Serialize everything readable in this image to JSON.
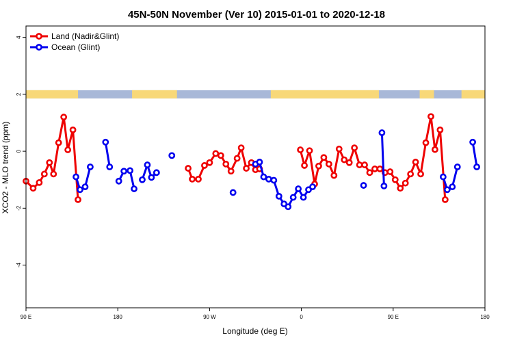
{
  "chart_data": {
    "type": "line",
    "title": "45N-50N November (Ver 10)   2015-01-01 to 2020-12-18",
    "xlabel": "Longitude (deg E)",
    "ylabel": "XCO2 - MLO trend (ppm)",
    "xlim": [
      90,
      540
    ],
    "ylim": [
      -5.5,
      4.4
    ],
    "x_ticks": [
      {
        "value": 90,
        "label": "90 E"
      },
      {
        "value": 180,
        "label": "180"
      },
      {
        "value": 270,
        "label": "90 W"
      },
      {
        "value": 360,
        "label": "0"
      },
      {
        "value": 450,
        "label": "90 E"
      },
      {
        "value": 540,
        "label": "180"
      }
    ],
    "y_ticks": [
      {
        "value": -4,
        "label": "-4"
      },
      {
        "value": -2,
        "label": "-2"
      },
      {
        "value": 0,
        "label": "0"
      },
      {
        "value": 2,
        "label": "2"
      },
      {
        "value": 4,
        "label": "4"
      }
    ],
    "surface_strip": {
      "y": 2.0,
      "land_color": "#f8d878",
      "ocean_color": "#a8b8d8",
      "land_ranges": [
        [
          90,
          141
        ],
        [
          194,
          238
        ],
        [
          330,
          436
        ],
        [
          476,
          490
        ],
        [
          517,
          540
        ]
      ]
    },
    "legend": [
      {
        "name": "Land (Nadir&Glint)",
        "color": "#ee0000"
      },
      {
        "name": "Ocean (Glint)",
        "color": "#0000ee"
      }
    ],
    "series": [
      {
        "name": "Land (Nadir&Glint)",
        "color": "#ee0000",
        "segments": [
          [
            [
              90,
              -1.05
            ],
            [
              97,
              -1.3
            ],
            [
              103,
              -1.1
            ],
            [
              108,
              -0.8
            ],
            [
              113,
              -0.4
            ],
            [
              117,
              -0.8
            ],
            [
              122,
              0.3
            ],
            [
              127,
              1.2
            ],
            [
              131,
              0.05
            ],
            [
              136,
              0.75
            ],
            [
              141,
              -1.7
            ]
          ],
          [
            [
              249,
              -0.6
            ],
            [
              253,
              -0.98
            ],
            [
              259,
              -0.98
            ],
            [
              265,
              -0.5
            ],
            [
              270,
              -0.4
            ],
            [
              276,
              -0.08
            ],
            [
              281,
              -0.15
            ],
            [
              286,
              -0.45
            ],
            [
              291,
              -0.7
            ],
            [
              297,
              -0.25
            ],
            [
              301,
              0.12
            ],
            [
              306,
              -0.6
            ],
            [
              311,
              -0.4
            ],
            [
              315,
              -0.65
            ],
            [
              319,
              -0.62
            ]
          ],
          [
            [
              359,
              0.05
            ],
            [
              363,
              -0.5
            ],
            [
              368,
              0.02
            ],
            [
              373,
              -1.15
            ],
            [
              377,
              -0.52
            ],
            [
              382,
              -0.22
            ],
            [
              387,
              -0.45
            ],
            [
              392,
              -0.85
            ],
            [
              397,
              0.08
            ],
            [
              402,
              -0.3
            ],
            [
              407,
              -0.4
            ],
            [
              412,
              0.12
            ],
            [
              417,
              -0.48
            ],
            [
              422,
              -0.48
            ],
            [
              427,
              -0.75
            ],
            [
              432,
              -0.62
            ],
            [
              437,
              -0.62
            ],
            [
              442,
              -0.75
            ],
            [
              447,
              -0.72
            ],
            [
              452,
              -1.0
            ],
            [
              457,
              -1.3
            ],
            [
              462,
              -1.12
            ],
            [
              467,
              -0.8
            ],
            [
              472,
              -0.38
            ],
            [
              477,
              -0.8
            ],
            [
              482,
              0.3
            ],
            [
              487,
              1.22
            ],
            [
              491,
              0.06
            ],
            [
              496,
              0.75
            ],
            [
              501,
              -1.7
            ]
          ]
        ]
      },
      {
        "name": "Ocean (Glint)",
        "color": "#0000ee",
        "segments": [
          [
            [
              139,
              -0.9
            ],
            [
              143,
              -1.35
            ],
            [
              148,
              -1.25
            ],
            [
              153,
              -0.55
            ]
          ],
          [
            [
              168,
              0.32
            ],
            [
              172,
              -0.55
            ]
          ],
          [
            [
              181,
              -1.05
            ],
            [
              186,
              -0.7
            ],
            [
              192,
              -0.68
            ],
            [
              196,
              -1.32
            ]
          ],
          [
            [
              204,
              -1.0
            ],
            [
              209,
              -0.48
            ],
            [
              213,
              -0.92
            ],
            [
              218,
              -0.75
            ]
          ],
          [
            [
              233,
              -0.15
            ]
          ],
          [
            [
              293,
              -1.45
            ]
          ],
          [
            [
              315,
              -0.45
            ],
            [
              319,
              -0.38
            ],
            [
              323,
              -0.9
            ],
            [
              328,
              -0.98
            ],
            [
              333,
              -1.02
            ],
            [
              338,
              -1.58
            ],
            [
              343,
              -1.85
            ],
            [
              347,
              -1.95
            ],
            [
              352,
              -1.62
            ],
            [
              357,
              -1.32
            ],
            [
              362,
              -1.62
            ],
            [
              367,
              -1.35
            ],
            [
              371,
              -1.25
            ]
          ],
          [
            [
              421,
              -1.2
            ]
          ],
          [
            [
              439,
              0.65
            ],
            [
              441,
              -1.22
            ]
          ],
          [
            [
              499,
              -0.9
            ],
            [
              503,
              -1.35
            ],
            [
              508,
              -1.25
            ],
            [
              513,
              -0.55
            ]
          ],
          [
            [
              528,
              0.32
            ],
            [
              532,
              -0.55
            ]
          ]
        ]
      }
    ]
  }
}
